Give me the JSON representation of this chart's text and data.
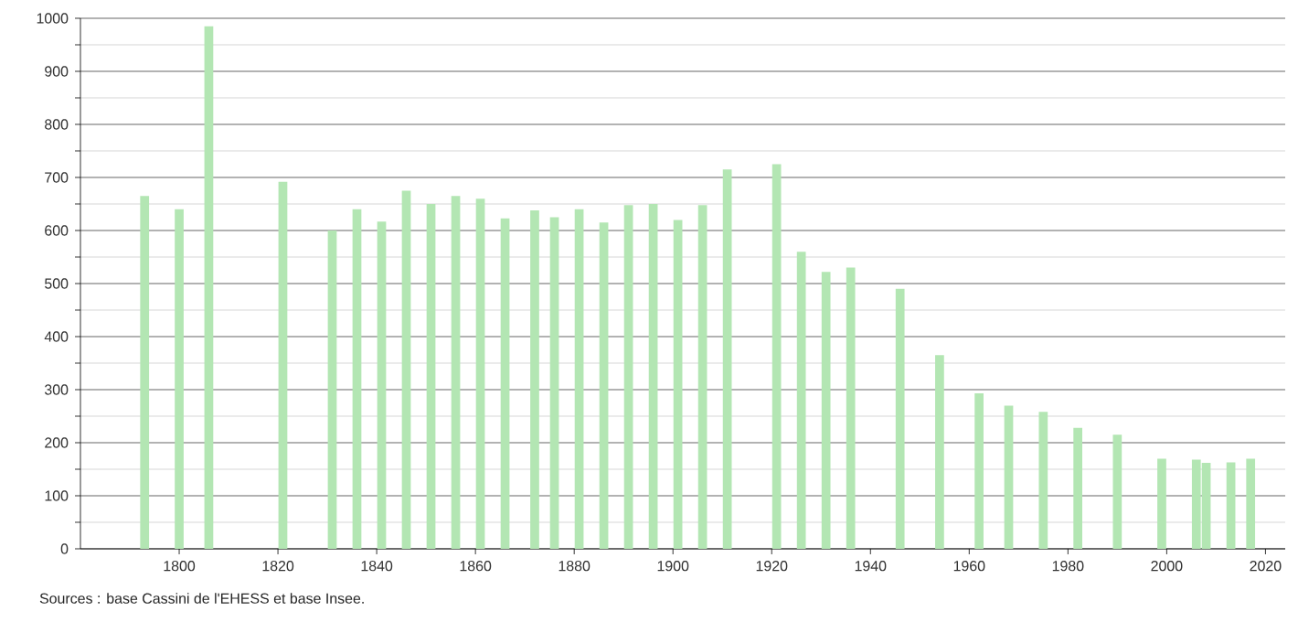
{
  "chart_data": {
    "type": "bar",
    "color": "#b3e6b3",
    "x": [
      1793,
      1800,
      1806,
      1821,
      1831,
      1836,
      1841,
      1846,
      1851,
      1856,
      1861,
      1866,
      1872,
      1876,
      1881,
      1886,
      1891,
      1896,
      1901,
      1906,
      1911,
      1921,
      1926,
      1931,
      1936,
      1946,
      1954,
      1962,
      1968,
      1975,
      1982,
      1990,
      1999,
      2006,
      2008,
      2013,
      2017
    ],
    "values": [
      665,
      640,
      985,
      692,
      600,
      640,
      617,
      675,
      650,
      665,
      660,
      623,
      638,
      625,
      640,
      615,
      648,
      650,
      620,
      648,
      715,
      725,
      560,
      522,
      530,
      490,
      365,
      293,
      270,
      258,
      228,
      215,
      170,
      168,
      162,
      163,
      170
    ],
    "xlim": [
      1780,
      2024
    ],
    "xticks": [
      1800,
      1820,
      1840,
      1860,
      1880,
      1900,
      1920,
      1940,
      1960,
      1980,
      2000,
      2020
    ],
    "ylim": [
      0,
      1000
    ],
    "yticks": [
      0,
      100,
      200,
      300,
      400,
      500,
      600,
      700,
      800,
      900,
      1000,
      {
        "value": 50,
        "label": null
      },
      {
        "value": 150,
        "label": null
      },
      {
        "value": 250,
        "label": null
      },
      {
        "value": 350,
        "label": null
      },
      {
        "value": 450,
        "label": null
      },
      {
        "value": 550,
        "label": null
      },
      {
        "value": 650,
        "label": null
      },
      {
        "value": 750,
        "label": null
      },
      {
        "value": 850,
        "label": null
      },
      {
        "value": 950,
        "label": null
      }
    ],
    "grid": "y",
    "annotations": [
      "Sources : base Cassini de l'EHESS et base Insee."
    ]
  }
}
